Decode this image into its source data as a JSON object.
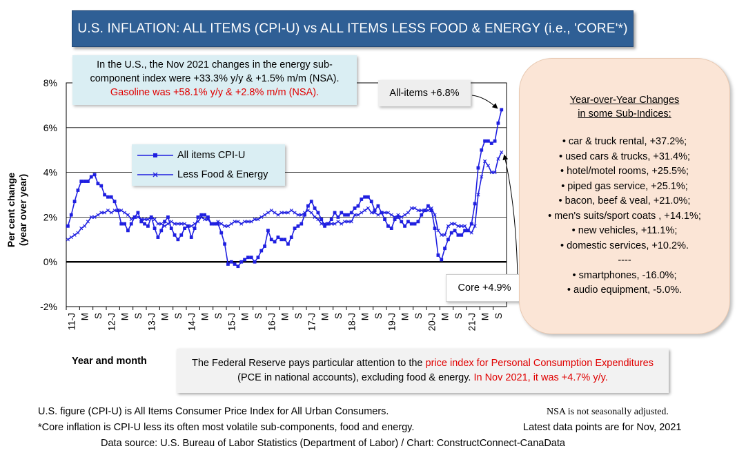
{
  "title": "U.S. INFLATION: ALL ITEMS (CPI-U) vs ALL ITEMS LESS FOOD & ENERGY (i.e., 'CORE'*)",
  "energy_note": {
    "line1": "In the U.S., the Nov 2021 changes in the energy sub-",
    "line2": "component index were +33.3% y/y & +1.5% m/m (NSA).",
    "line3": "Gasoline was +58.1% y/y & +2.8% m/m (NSA)."
  },
  "allitems_callout": "All-items +6.8%",
  "core_callout": "Core +4.9%",
  "legend": {
    "series1": "All items CPI-U",
    "series2": "Less Food & Energy"
  },
  "sub_indices": {
    "heading1": "Year-over-Year Changes",
    "heading2": "in some Sub-Indices:",
    "items": [
      "• car & truck rental, +37.2%;",
      "• used cars & trucks, +31.4%;",
      "• hotel/motel rooms, +25.5%;",
      "• piped gas service, +25.1%;",
      "• bacon, beef & veal, +21.0%;",
      "• men's suits/sport coats , +14.1%;",
      "• new vehicles, +11.1%;",
      "• domestic services, +10.2%.",
      "----",
      "• smartphones, -16.0%;",
      "• audio equipment, -5.0%."
    ]
  },
  "fed_note": {
    "part1": "The Federal Reserve pays particular attention to the ",
    "part2": "price index for Personal Consumption Expenditures",
    "part3": " (PCE in national accounts), excluding food & energy. ",
    "part4": "In Nov 2021, it was +4.7% y/y."
  },
  "footer": {
    "line1": "U.S. figure (CPI-U) is All Items Consumer Price Index for All Urban Consumers.",
    "line2": "*Core inflation is CPI-U less its often most volatile sub-components, food and energy.",
    "line3": "Data source: U.S. Bureau of Labor Statistics (Department of Labor) / Chart: ConstructConnect-CanaData",
    "nsa": "NSA is not seasonally adjusted.",
    "latest": "Latest data points are for Nov, 2021"
  },
  "colors": {
    "series": "#1f1fe0",
    "grid": "#000000",
    "title_bg": "#2f5f95",
    "panel_bg": "#fbe5d6",
    "note_bg": "#daeef3",
    "highlight": "#e00000"
  },
  "chart_data": {
    "type": "line",
    "xlabel": "Year and month",
    "ylabel": "Per cent change (year over year)",
    "ylim": [
      -2,
      8
    ],
    "yticks": [
      "-2%",
      "0%",
      "2%",
      "4%",
      "6%",
      "8%"
    ],
    "ytick_values": [
      -2,
      0,
      2,
      4,
      6,
      8
    ],
    "grid": "horizontal",
    "legend_position": "upper-left",
    "xticks": [
      "11-J",
      "M",
      "S",
      "12-J",
      "M",
      "S",
      "13-J",
      "M",
      "S",
      "14-J",
      "M",
      "S",
      "15-J",
      "M",
      "S",
      "16-J",
      "M",
      "S",
      "17-J",
      "M",
      "S",
      "18-J",
      "M",
      "S",
      "19-J",
      "M",
      "S",
      "20-J",
      "M",
      "S",
      "21-J",
      "M",
      "S"
    ],
    "start": "2011-01",
    "end": "2021-11",
    "series": [
      {
        "name": "All items CPI-U",
        "marker": "square",
        "values": [
          1.6,
          2.1,
          2.7,
          3.2,
          3.6,
          3.6,
          3.6,
          3.8,
          3.9,
          3.5,
          3.4,
          3.0,
          2.9,
          2.9,
          2.7,
          2.3,
          1.7,
          1.7,
          1.4,
          1.7,
          2.0,
          2.2,
          1.8,
          1.7,
          1.6,
          2.0,
          1.5,
          1.1,
          1.4,
          1.8,
          2.0,
          1.5,
          1.2,
          1.0,
          1.2,
          1.5,
          1.6,
          1.1,
          1.5,
          2.0,
          2.1,
          2.1,
          2.0,
          1.7,
          1.7,
          1.7,
          1.3,
          0.8,
          -0.1,
          0.0,
          -0.1,
          -0.2,
          0.0,
          0.1,
          0.2,
          0.2,
          0.0,
          0.2,
          0.5,
          0.7,
          1.4,
          1.0,
          0.9,
          1.1,
          1.0,
          1.0,
          0.8,
          1.1,
          1.5,
          1.6,
          1.7,
          2.1,
          2.5,
          2.7,
          2.4,
          2.2,
          1.9,
          1.6,
          1.7,
          1.9,
          2.2,
          2.0,
          2.2,
          2.1,
          2.1,
          2.2,
          2.4,
          2.5,
          2.8,
          2.9,
          2.9,
          2.7,
          2.3,
          2.5,
          2.2,
          1.9,
          1.6,
          1.5,
          1.9,
          2.0,
          1.8,
          1.6,
          1.8,
          1.7,
          1.7,
          1.8,
          2.1,
          2.3,
          2.5,
          2.3,
          1.5,
          0.3,
          0.1,
          0.6,
          1.0,
          1.3,
          1.4,
          1.2,
          1.2,
          1.4,
          1.4,
          1.7,
          2.6,
          4.2,
          5.0,
          5.4,
          5.4,
          5.3,
          5.4,
          6.2,
          6.8
        ]
      },
      {
        "name": "Less Food & Energy",
        "marker": "x",
        "values": [
          1.0,
          1.1,
          1.2,
          1.3,
          1.5,
          1.6,
          1.8,
          2.0,
          2.0,
          2.1,
          2.2,
          2.2,
          2.3,
          2.2,
          2.3,
          2.3,
          2.3,
          2.2,
          2.1,
          1.9,
          2.0,
          2.0,
          1.9,
          1.9,
          1.9,
          2.0,
          1.9,
          1.7,
          1.7,
          1.6,
          1.7,
          1.8,
          1.7,
          1.7,
          1.7,
          1.7,
          1.6,
          1.6,
          1.7,
          1.8,
          2.0,
          1.9,
          1.9,
          1.7,
          1.7,
          1.8,
          1.7,
          1.6,
          1.6,
          1.7,
          1.8,
          1.8,
          1.7,
          1.8,
          1.8,
          1.8,
          1.9,
          1.9,
          2.0,
          2.1,
          2.2,
          2.3,
          2.2,
          2.1,
          2.2,
          2.2,
          2.2,
          2.3,
          2.2,
          2.1,
          2.1,
          2.2,
          2.3,
          2.2,
          2.0,
          1.9,
          1.7,
          1.7,
          1.7,
          1.7,
          1.7,
          1.8,
          1.7,
          1.8,
          1.8,
          1.8,
          2.1,
          2.1,
          2.2,
          2.3,
          2.4,
          2.2,
          2.2,
          2.1,
          2.2,
          2.2,
          2.2,
          2.1,
          2.0,
          2.1,
          2.0,
          2.1,
          2.2,
          2.4,
          2.4,
          2.3,
          2.3,
          2.3,
          2.3,
          2.4,
          2.1,
          1.4,
          1.2,
          1.2,
          1.6,
          1.7,
          1.7,
          1.6,
          1.6,
          1.6,
          1.4,
          1.3,
          1.6,
          3.0,
          3.8,
          4.5,
          4.3,
          4.0,
          4.0,
          4.6,
          4.9
        ]
      }
    ]
  }
}
